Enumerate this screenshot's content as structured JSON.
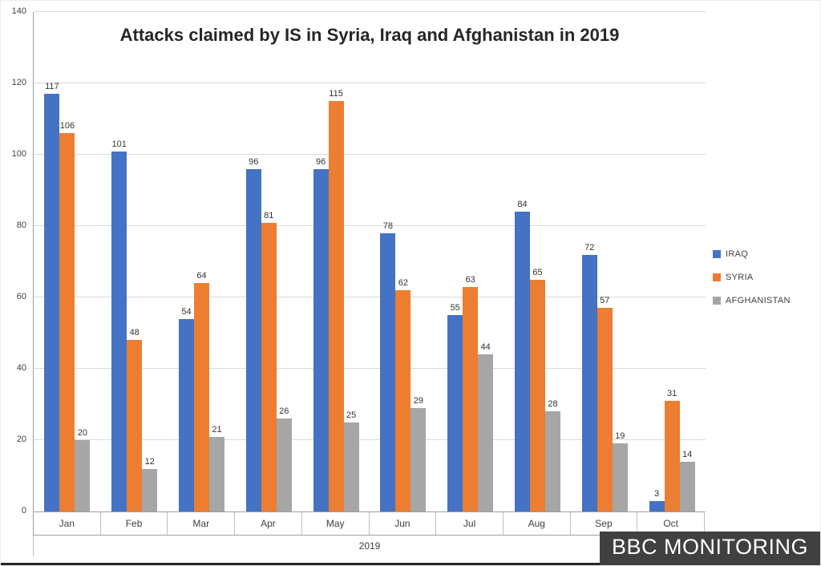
{
  "chart_data": {
    "type": "bar",
    "title": "Attacks claimed by IS in Syria, Iraq and Afghanistan in 2019",
    "categories": [
      "Jan",
      "Feb",
      "Mar",
      "Apr",
      "May",
      "Jun",
      "Jul",
      "Aug",
      "Sep",
      "Oct"
    ],
    "series": [
      {
        "name": "IRAQ",
        "color": "#4472c4",
        "values": [
          117,
          101,
          54,
          96,
          96,
          78,
          55,
          84,
          72,
          3
        ]
      },
      {
        "name": "SYRIA",
        "color": "#ed7d31",
        "values": [
          106,
          48,
          64,
          81,
          115,
          62,
          63,
          65,
          57,
          31
        ]
      },
      {
        "name": "AFGHANISTAN",
        "color": "#a6a6a6",
        "values": [
          20,
          12,
          21,
          26,
          25,
          29,
          44,
          28,
          19,
          14
        ]
      }
    ],
    "xlabel": "2019",
    "ylabel": "",
    "ylim": [
      0,
      140
    ],
    "yticks": [
      0,
      20,
      40,
      60,
      80,
      100,
      120,
      140
    ],
    "grid": true,
    "legend_position": "right",
    "data_labels": true
  },
  "watermark": {
    "label": "BBC MONITORING",
    "background": "#404040",
    "text_color": "#ffffff"
  }
}
